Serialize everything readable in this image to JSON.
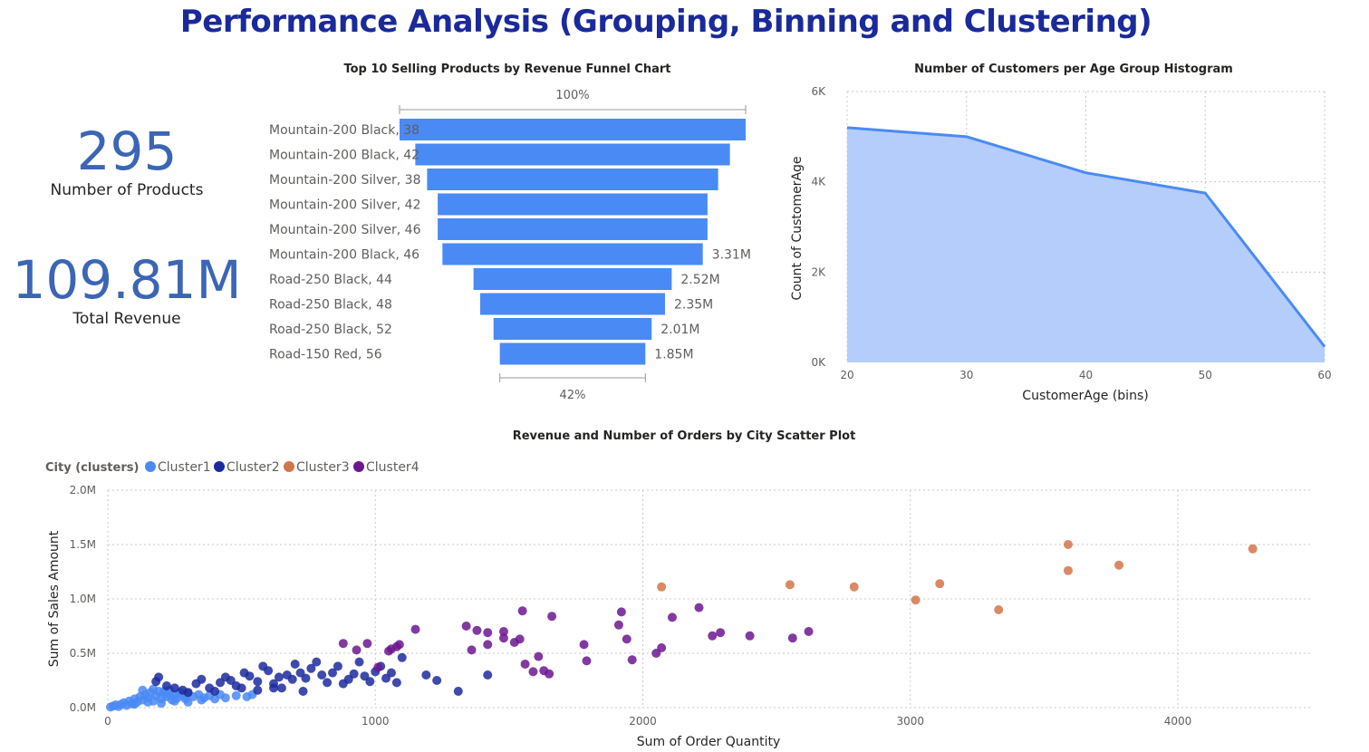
{
  "title": "Performance Analysis (Grouping, Binning and Clustering)",
  "kpis": {
    "products": {
      "value": "295",
      "label": "Number of Products"
    },
    "revenue": {
      "value": "109.81M",
      "label": "Total Revenue"
    }
  },
  "colors": {
    "title": "#1a2a9a",
    "kpi": "#3b65b5",
    "funnel_bar": "#4a8af4",
    "area_fill": "#b5cdfa",
    "area_line": "#4a8af4",
    "cluster1": "#4a8af4",
    "cluster2": "#1c2a9e",
    "cluster3": "#d2754a",
    "cluster4": "#6c1790"
  },
  "chart_data": [
    {
      "type": "funnel",
      "title": "Top 10 Selling Products by Revenue Funnel Chart",
      "top_percent_label": "100%",
      "bottom_percent_label": "42%",
      "categories": [
        "Mountain-200 Black, 38",
        "Mountain-200 Black, 42",
        "Mountain-200 Silver, 38",
        "Mountain-200 Silver, 42",
        "Mountain-200 Silver, 46",
        "Mountain-200 Black, 46",
        "Road-250 Black, 44",
        "Road-250 Black, 48",
        "Road-250 Black, 52",
        "Road-150 Red, 56"
      ],
      "values": [
        4.4,
        4.0,
        3.7,
        3.43,
        3.43,
        3.31,
        2.52,
        2.35,
        2.01,
        1.85
      ],
      "data_labels": [
        "",
        "",
        "",
        "",
        "",
        "3.31M",
        "2.52M",
        "2.35M",
        "2.01M",
        "1.85M"
      ]
    },
    {
      "type": "area",
      "title": "Number of Customers per Age Group Histogram",
      "xlabel": "CustomerAge (bins)",
      "ylabel": "Count of CustomerAge",
      "x": [
        20,
        30,
        40,
        50,
        60
      ],
      "values": [
        5200,
        5000,
        4200,
        3750,
        350
      ],
      "xlim": [
        20,
        60
      ],
      "ylim": [
        0,
        6000
      ],
      "x_ticks": [
        "20",
        "30",
        "40",
        "50",
        "60"
      ],
      "y_ticks": [
        "0K",
        "2K",
        "4K",
        "6K"
      ],
      "grid": true
    },
    {
      "type": "scatter",
      "title": "Revenue and Number of Orders by City Scatter Plot",
      "legend_title": "City (clusters)",
      "legend_position": "top-left",
      "xlabel": "Sum of Order Quantity",
      "ylabel": "Sum of Sales Amount",
      "xlim": [
        0,
        4500
      ],
      "ylim": [
        0,
        2000000
      ],
      "x_ticks": [
        "0",
        "1000",
        "2000",
        "3000",
        "4000"
      ],
      "y_ticks": [
        "0.0M",
        "0.5M",
        "1.0M",
        "1.5M",
        "2.0M"
      ],
      "grid": true,
      "series": [
        {
          "name": "Cluster1",
          "points": [
            [
              10,
              5000
            ],
            [
              20,
              15000
            ],
            [
              30,
              25000
            ],
            [
              40,
              10000
            ],
            [
              50,
              30000
            ],
            [
              60,
              45000
            ],
            [
              70,
              20000
            ],
            [
              80,
              60000
            ],
            [
              90,
              35000
            ],
            [
              100,
              80000
            ],
            [
              110,
              50000
            ],
            [
              120,
              100000
            ],
            [
              130,
              70000
            ],
            [
              140,
              120000
            ],
            [
              150,
              90000
            ],
            [
              160,
              140000
            ],
            [
              170,
              60000
            ],
            [
              180,
              110000
            ],
            [
              190,
              150000
            ],
            [
              200,
              80000
            ],
            [
              210,
              130000
            ],
            [
              220,
              100000
            ],
            [
              230,
              160000
            ],
            [
              240,
              70000
            ],
            [
              250,
              120000
            ],
            [
              260,
              90000
            ],
            [
              270,
              140000
            ],
            [
              280,
              110000
            ],
            [
              290,
              80000
            ],
            [
              300,
              130000
            ],
            [
              320,
              100000
            ],
            [
              340,
              120000
            ],
            [
              360,
              90000
            ],
            [
              380,
              110000
            ],
            [
              400,
              80000
            ],
            [
              420,
              120000
            ],
            [
              440,
              90000
            ],
            [
              480,
              110000
            ],
            [
              520,
              100000
            ],
            [
              540,
              120000
            ],
            [
              100,
              30000
            ],
            [
              150,
              50000
            ],
            [
              200,
              40000
            ],
            [
              250,
              60000
            ],
            [
              300,
              50000
            ],
            [
              350,
              70000
            ],
            [
              130,
              160000
            ],
            [
              170,
              170000
            ],
            [
              210,
              150000
            ],
            [
              230,
              120000
            ]
          ]
        },
        {
          "name": "Cluster2",
          "points": [
            [
              180,
              240000
            ],
            [
              190,
              280000
            ],
            [
              220,
              200000
            ],
            [
              250,
              180000
            ],
            [
              280,
              160000
            ],
            [
              300,
              140000
            ],
            [
              330,
              220000
            ],
            [
              350,
              260000
            ],
            [
              380,
              180000
            ],
            [
              400,
              150000
            ],
            [
              420,
              230000
            ],
            [
              440,
              280000
            ],
            [
              460,
              250000
            ],
            [
              480,
              200000
            ],
            [
              500,
              180000
            ],
            [
              510,
              320000
            ],
            [
              530,
              290000
            ],
            [
              560,
              240000
            ],
            [
              580,
              380000
            ],
            [
              600,
              340000
            ],
            [
              620,
              220000
            ],
            [
              640,
              280000
            ],
            [
              650,
              180000
            ],
            [
              670,
              300000
            ],
            [
              690,
              260000
            ],
            [
              700,
              400000
            ],
            [
              720,
              320000
            ],
            [
              740,
              270000
            ],
            [
              760,
              360000
            ],
            [
              780,
              420000
            ],
            [
              800,
              300000
            ],
            [
              820,
              230000
            ],
            [
              840,
              320000
            ],
            [
              860,
              380000
            ],
            [
              880,
              220000
            ],
            [
              900,
              260000
            ],
            [
              920,
              310000
            ],
            [
              940,
              420000
            ],
            [
              960,
              290000
            ],
            [
              980,
              240000
            ],
            [
              1000,
              330000
            ],
            [
              1020,
              380000
            ],
            [
              1040,
              270000
            ],
            [
              1060,
              320000
            ],
            [
              1080,
              230000
            ],
            [
              1100,
              460000
            ],
            [
              1190,
              300000
            ],
            [
              1230,
              250000
            ],
            [
              1310,
              150000
            ],
            [
              1420,
              300000
            ],
            [
              620,
              180000
            ],
            [
              730,
              150000
            ],
            [
              560,
              160000
            ]
          ]
        },
        {
          "name": "Cluster3",
          "points": [
            [
              2070,
              1110000
            ],
            [
              2550,
              1130000
            ],
            [
              2790,
              1110000
            ],
            [
              3020,
              990000
            ],
            [
              3110,
              1140000
            ],
            [
              3330,
              900000
            ],
            [
              3590,
              1500000
            ],
            [
              3590,
              1260000
            ],
            [
              3780,
              1310000
            ],
            [
              4280,
              1460000
            ]
          ]
        },
        {
          "name": "Cluster4",
          "points": [
            [
              880,
              590000
            ],
            [
              930,
              530000
            ],
            [
              970,
              590000
            ],
            [
              1050,
              520000
            ],
            [
              1080,
              560000
            ],
            [
              1090,
              580000
            ],
            [
              1150,
              720000
            ],
            [
              1340,
              750000
            ],
            [
              1360,
              530000
            ],
            [
              1380,
              710000
            ],
            [
              1420,
              580000
            ],
            [
              1480,
              640000
            ],
            [
              1480,
              700000
            ],
            [
              1540,
              630000
            ],
            [
              1550,
              890000
            ],
            [
              1560,
              400000
            ],
            [
              1610,
              470000
            ],
            [
              1630,
              340000
            ],
            [
              1660,
              840000
            ],
            [
              1650,
              310000
            ],
            [
              1780,
              580000
            ],
            [
              1790,
              430000
            ],
            [
              1910,
              760000
            ],
            [
              1920,
              880000
            ],
            [
              1940,
              630000
            ],
            [
              1960,
              440000
            ],
            [
              2050,
              500000
            ],
            [
              2070,
              550000
            ],
            [
              2110,
              830000
            ],
            [
              2210,
              920000
            ],
            [
              2260,
              660000
            ],
            [
              2290,
              690000
            ],
            [
              2400,
              660000
            ],
            [
              2560,
              640000
            ],
            [
              2620,
              700000
            ],
            [
              1590,
              330000
            ],
            [
              1520,
              600000
            ],
            [
              1060,
              540000
            ],
            [
              1010,
              370000
            ],
            [
              1420,
              690000
            ]
          ]
        }
      ]
    }
  ]
}
